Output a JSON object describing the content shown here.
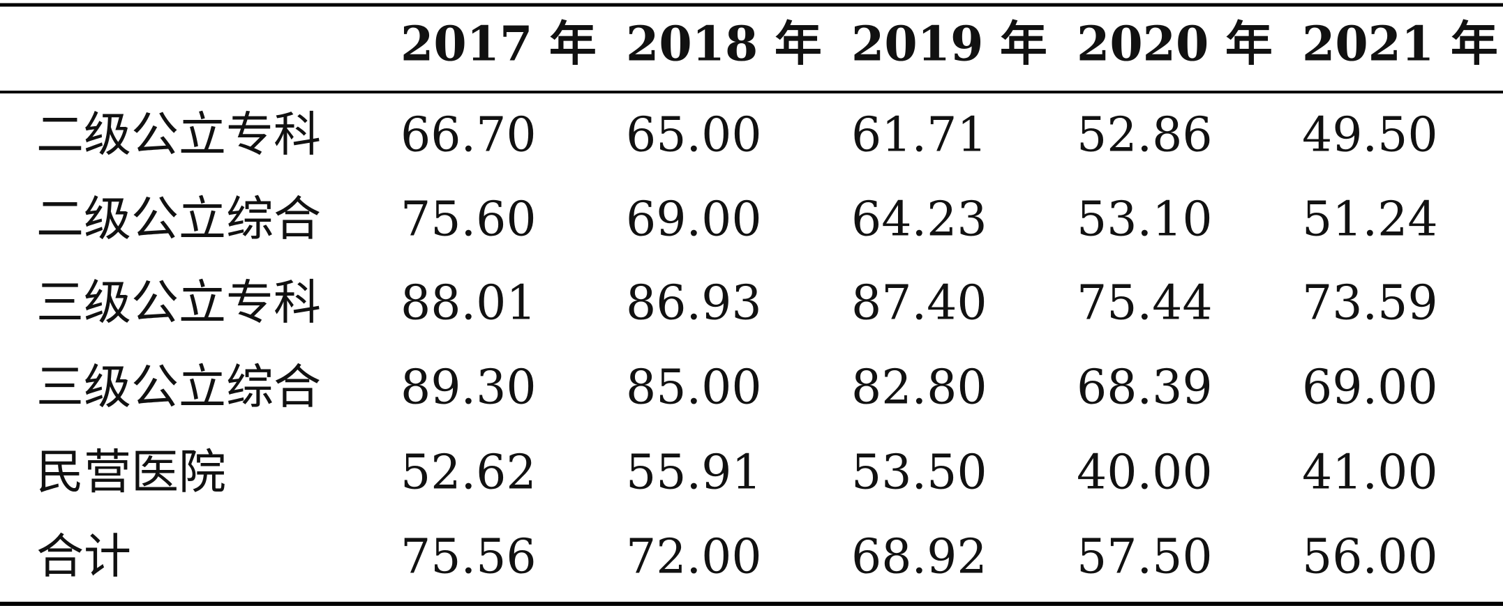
{
  "table": {
    "columns": [
      "2017 年",
      "2018 年",
      "2019 年",
      "2020 年",
      "2021 年"
    ],
    "rows": [
      {
        "label": "二级公立专科",
        "values": [
          "66.70",
          "65.00",
          "61.71",
          "52.86",
          "49.50"
        ]
      },
      {
        "label": "二级公立综合",
        "values": [
          "75.60",
          "69.00",
          "64.23",
          "53.10",
          "51.24"
        ]
      },
      {
        "label": "三级公立专科",
        "values": [
          "88.01",
          "86.93",
          "87.40",
          "75.44",
          "73.59"
        ]
      },
      {
        "label": "三级公立综合",
        "values": [
          "89.30",
          "85.00",
          "82.80",
          "68.39",
          "69.00"
        ]
      },
      {
        "label": "民营医院",
        "values": [
          "52.62",
          "55.91",
          "53.50",
          "40.00",
          "41.00"
        ]
      },
      {
        "label": "合计",
        "values": [
          "75.56",
          "72.00",
          "68.92",
          "57.50",
          "56.00"
        ]
      }
    ]
  }
}
